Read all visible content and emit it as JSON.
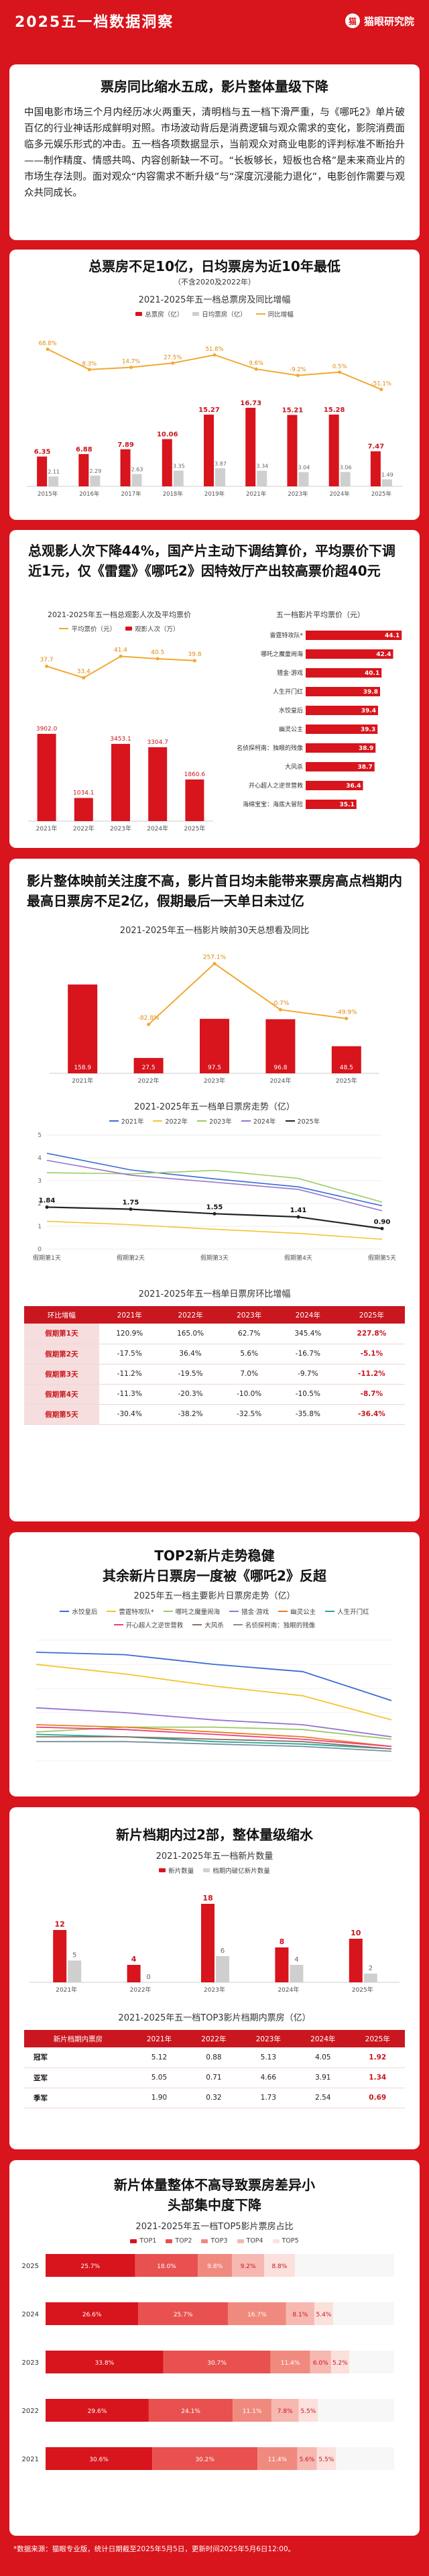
{
  "header": {
    "title": "2025五一档数据洞察",
    "brand": "猫眼研究院"
  },
  "intro": {
    "title": "票房同比缩水五成，影片整体量级下降",
    "text": "中国电影市场三个月内经历冰火两重天，清明档与五一档下滑严重，与《哪吒2》单片破百亿的行业神话形成鲜明对照。市场波动背后是消费逻辑与观众需求的变化，影院消费面临多元娱乐形式的冲击。五一档各项数据显示，当前观众对商业电影的评判标准不断抬升——制作精度、情感共鸣、内容创新缺一不可。“长板够长，短板也合格”是未来商业片的市场生存法则。面对观众“内容需求不断升级”与“深度沉浸能力退化”，电影创作需要与观众共同成长。"
  },
  "s1": {
    "title": "总票房不足10亿，日均票房为近10年最低",
    "subtitle": "（不含2020及2022年）",
    "chart_title": "2021-2025年五一档总票房及同比增幅",
    "legend": [
      "总票房（亿）",
      "日均票房（亿）",
      "同比增幅"
    ]
  },
  "s2": {
    "title": "总观影人次下降44%，国产片主动下调结算价，平均票价下调近1元，仅《雷霆》《哪吒2》因特效厅产出较高票价超40元",
    "left_chart_title": "2021-2025年五一档总观影人次及平均票价",
    "left_legend": [
      "平均票价（元）",
      "观影人次（万）"
    ],
    "right_chart_title": "五一档影片平均票价（元）"
  },
  "s3": {
    "title": "影片整体映前关注度不高，影片首日均未能带来票房高点档期内最高日票房不足2亿，假期最后一天单日未过亿",
    "want_chart_title": "2021-2025年五一档影片映前30天总想看及同比",
    "trend_title": "2021-2025年五一档单日票房走势（亿）",
    "trend_legend": [
      "2021年",
      "2022年",
      "2023年",
      "2024年",
      "2025年"
    ],
    "table_title": "2021-2025年五一档单日票房环比增幅",
    "table_headers": [
      "环比增幅",
      "2021年",
      "2022年",
      "2023年",
      "2024年",
      "2025年"
    ],
    "table_rows": [
      [
        "假期第1天",
        "120.9%",
        "165.0%",
        "62.7%",
        "345.4%",
        "227.8%"
      ],
      [
        "假期第2天",
        "-17.5%",
        "36.4%",
        "5.6%",
        "-16.7%",
        "-5.1%"
      ],
      [
        "假期第3天",
        "-11.2%",
        "-19.5%",
        "7.0%",
        "-9.7%",
        "-11.2%"
      ],
      [
        "假期第4天",
        "-11.3%",
        "-20.3%",
        "-10.0%",
        "-10.5%",
        "-8.7%"
      ],
      [
        "假期第5天",
        "-30.4%",
        "-38.2%",
        "-32.5%",
        "-35.8%",
        "-36.4%"
      ]
    ]
  },
  "s4": {
    "title": "TOP2新片走势稳健\n其余新片日票房一度被《哪吒2》反超",
    "chart_title": "2025年五一档主要影片日票房走势（亿）",
    "legend": [
      "水饺皇后",
      "雷霆特攻队*",
      "哪吒之魔童闹海",
      "猎金·游戏",
      "幽灵公主",
      "人生开门红",
      "开心超人之逆世营救",
      "大风杀",
      "名侦探柯南：独眼的残像"
    ]
  },
  "s5": {
    "title": "新片档期内过2部，整体量级缩水",
    "chart_title": "2021-2025年五一档新片数量",
    "legend": [
      "新片数量",
      "档期内破亿新片数量"
    ],
    "table_title": "2021-2025年五一档TOP3影片档期内票房（亿）",
    "table_headers": [
      "新片档期内票房",
      "2021年",
      "2022年",
      "2023年",
      "2024年",
      "2025年"
    ],
    "table_rows": [
      [
        "冠军",
        "5.12",
        "0.88",
        "5.13",
        "4.05",
        "1.92"
      ],
      [
        "亚军",
        "5.05",
        "0.71",
        "4.66",
        "3.91",
        "1.34"
      ],
      [
        "季军",
        "1.90",
        "0.32",
        "1.73",
        "2.54",
        "0.69"
      ]
    ]
  },
  "s6": {
    "title": "新片体量整体不高导致票房差异小\n头部集中度下降",
    "chart_title": "2021-2025年五一档TOP5影片票房占比",
    "legend": [
      "TOP1",
      "TOP2",
      "TOP3",
      "TOP4",
      "TOP5"
    ]
  },
  "footer": "*数据来源：猫眼专业版，统计日期截至2025年5月5日，更新时间2025年5月6日12:00。",
  "chart_data": [
    {
      "type": "bar",
      "title": "2021-2025年五一档总票房及同比增幅",
      "categories": [
        "2015年",
        "2016年",
        "2017年",
        "2018年",
        "2019年",
        "2021年",
        "2023年",
        "2024年",
        "2025年"
      ],
      "series": [
        {
          "name": "总票房（亿）",
          "values": [
            6.35,
            6.88,
            7.89,
            10.06,
            15.27,
            16.73,
            15.21,
            15.28,
            7.47
          ]
        },
        {
          "name": "日均票房（亿）",
          "values": [
            2.11,
            2.29,
            2.63,
            3.35,
            3.87,
            3.34,
            3.04,
            3.06,
            1.49
          ]
        },
        {
          "name": "同比增幅",
          "values": [
            68.8,
            8.3,
            14.7,
            27.5,
            51.8,
            9.6,
            -9.2,
            0.5,
            -51.1
          ]
        }
      ]
    },
    {
      "type": "bar",
      "title": "2021-2025年五一档总观影人次及平均票价",
      "categories": [
        "2021年",
        "2022年",
        "2023年",
        "2024年",
        "2025年"
      ],
      "series": [
        {
          "name": "观影人次（万）",
          "values": [
            3902.0,
            1034.1,
            3453.1,
            3304.7,
            1860.6
          ]
        },
        {
          "name": "平均票价（元）",
          "values": [
            37.7,
            33.4,
            41.4,
            40.5,
            39.8
          ]
        }
      ]
    },
    {
      "type": "bar",
      "title": "五一档影片平均票价（元）",
      "categories": [
        "雷霆特攻队*",
        "哪吒之魔童闹海",
        "猎金·游戏",
        "人生开门红",
        "水饺皇后",
        "幽灵公主",
        "名侦探柯南：独眼的残像",
        "大风杀",
        "开心超人之逆世营救",
        "海绵宝宝：海底大冒险"
      ],
      "values": [
        44.1,
        42.4,
        40.1,
        39.8,
        39.4,
        39.3,
        38.9,
        38.7,
        36.4,
        35.1
      ]
    },
    {
      "type": "bar",
      "title": "2021-2025年五一档影片映前30天总想看及同比",
      "categories": [
        "2021年",
        "2022年",
        "2023年",
        "2024年",
        "2025年"
      ],
      "series": [
        {
          "name": "总想看（万）",
          "values": [
            158.9,
            27.5,
            97.5,
            96.8,
            48.5
          ]
        },
        {
          "name": "同比",
          "values": [
            null,
            -82.8,
            257.1,
            -0.7,
            -49.9
          ]
        }
      ]
    },
    {
      "type": "line",
      "title": "2021-2025年五一档单日票房走势（亿）",
      "x": [
        "假期第1天",
        "假期第2天",
        "假期第3天",
        "假期第4天",
        "假期第5天"
      ],
      "series": [
        {
          "name": "2021年",
          "values": [
            4.2,
            3.47,
            3.08,
            2.73,
            1.9
          ]
        },
        {
          "name": "2022年",
          "values": [
            1.22,
            1.07,
            0.87,
            0.69,
            0.43
          ]
        },
        {
          "name": "2023年",
          "values": [
            3.35,
            3.3,
            3.45,
            3.1,
            2.06
          ]
        },
        {
          "name": "2024年",
          "values": [
            3.89,
            3.24,
            2.93,
            2.62,
            1.68
          ]
        },
        {
          "name": "2025年",
          "values": [
            1.84,
            1.75,
            1.55,
            1.41,
            0.9
          ]
        }
      ]
    },
    {
      "type": "line",
      "title": "2025年五一档主要影片日票房走势（亿）",
      "x": [
        "5.1",
        "5.2",
        "5.3",
        "5.4",
        "5.5"
      ],
      "series": [
        {
          "name": "水饺皇后",
          "values": [
            0.45,
            0.44,
            0.4,
            0.37,
            0.25
          ]
        },
        {
          "name": "雷霆特攻队*",
          "values": [
            0.4,
            0.36,
            0.31,
            0.27,
            0.17
          ]
        },
        {
          "name": "哪吒之魔童闹海",
          "values": [
            0.12,
            0.14,
            0.14,
            0.13,
            0.09
          ]
        },
        {
          "name": "猎金·游戏",
          "values": [
            0.22,
            0.2,
            0.17,
            0.15,
            0.1
          ]
        },
        {
          "name": "幽灵公主",
          "values": [
            0.15,
            0.14,
            0.12,
            0.1,
            0.06
          ]
        },
        {
          "name": "人生开门红",
          "values": [
            0.11,
            0.1,
            0.08,
            0.07,
            0.05
          ]
        },
        {
          "name": "开心超人之逆世营救",
          "values": [
            0.14,
            0.13,
            0.11,
            0.09,
            0.06
          ]
        },
        {
          "name": "大风杀",
          "values": [
            0.1,
            0.1,
            0.09,
            0.08,
            0.05
          ]
        },
        {
          "name": "名侦探柯南：独眼的残像",
          "values": [
            0.08,
            0.08,
            0.07,
            0.06,
            0.04
          ]
        }
      ]
    },
    {
      "type": "bar",
      "title": "2021-2025年五一档新片数量",
      "categories": [
        "2021年",
        "2022年",
        "2023年",
        "2024年",
        "2025年"
      ],
      "series": [
        {
          "name": "新片数量",
          "values": [
            12,
            4,
            18,
            8,
            10
          ]
        },
        {
          "name": "档期内破亿新片数量",
          "values": [
            5,
            0,
            6,
            4,
            2
          ]
        }
      ]
    },
    {
      "type": "bar",
      "title": "2021-2025年五一档TOP5影片票房占比",
      "categories": [
        "2025",
        "2024",
        "2023",
        "2022",
        "2021"
      ],
      "series": [
        {
          "name": "TOP1",
          "values": [
            25.7,
            26.6,
            33.8,
            29.6,
            30.6
          ]
        },
        {
          "name": "TOP2",
          "values": [
            18.0,
            25.7,
            30.7,
            24.1,
            30.2
          ]
        },
        {
          "name": "TOP3",
          "values": [
            9.8,
            16.7,
            11.4,
            11.1,
            11.4
          ]
        },
        {
          "name": "TOP4",
          "values": [
            9.2,
            8.1,
            6.0,
            7.8,
            5.6
          ]
        },
        {
          "name": "TOP5",
          "values": [
            8.8,
            5.4,
            5.2,
            5.5,
            5.5
          ]
        }
      ]
    }
  ]
}
